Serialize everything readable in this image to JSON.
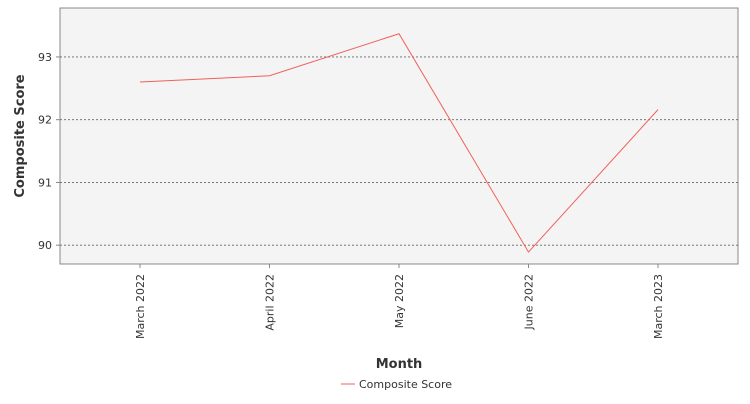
{
  "chart_data": {
    "type": "line",
    "x_label": "Month",
    "y_label": "Composite Score",
    "categories": [
      "March 2022",
      "April 2022",
      "May 2022",
      "June 2022",
      "March 2023"
    ],
    "series": [
      {
        "name": "Composite Score",
        "color": "#f0605a",
        "values": [
          92.6,
          92.7,
          93.37,
          89.89,
          92.16
        ]
      }
    ],
    "ylim": [
      89.7,
      93.78
    ],
    "yticks": [
      90,
      91,
      92,
      93
    ],
    "grid": true,
    "legend": "bottom"
  }
}
